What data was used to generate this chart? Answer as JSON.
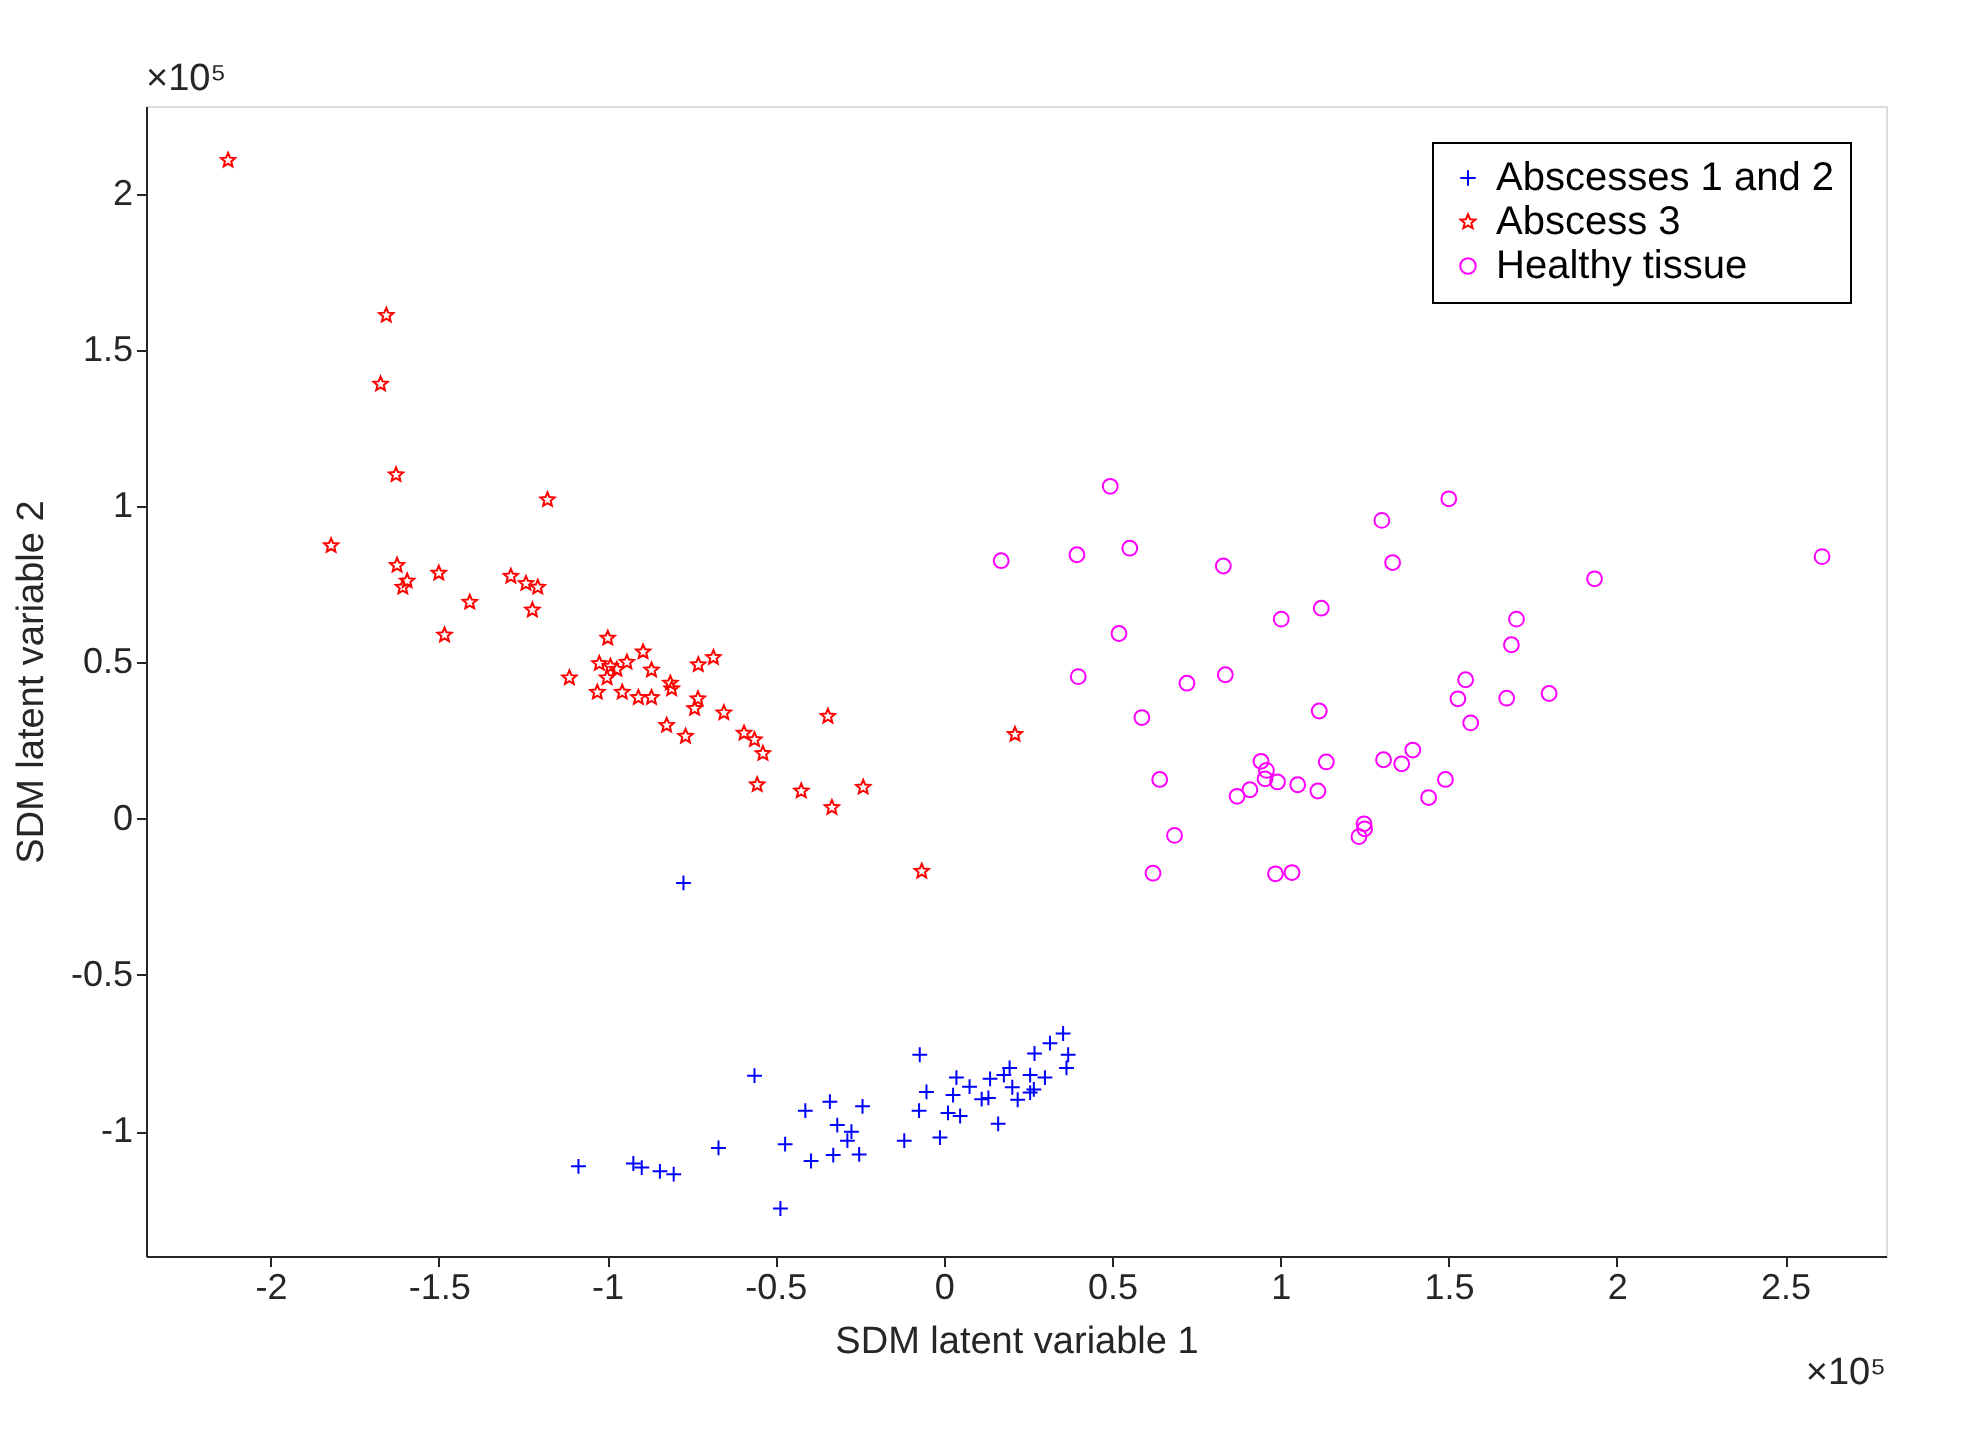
{
  "chart_data": {
    "type": "scatter",
    "xlabel": "SDM latent variable 1",
    "ylabel": "SDM latent variable 2",
    "xlim": [
      -2.37,
      2.8
    ],
    "ylim": [
      -1.4,
      2.28
    ],
    "xticks": [
      -2,
      -1.5,
      -1,
      -0.5,
      0,
      0.5,
      1,
      1.5,
      2,
      2.5
    ],
    "yticks": [
      -1,
      -0.5,
      0,
      0.5,
      1,
      1.5,
      2
    ],
    "grid": false,
    "legend": "top right",
    "annotations": [
      "×10⁵",
      "×10⁵"
    ],
    "series": [
      {
        "name": "Abscesses 1 and 2",
        "color": "#0000ff",
        "marker": "cross",
        "x": [
          -1.085,
          -0.922,
          -0.897,
          -0.843,
          -0.802,
          -0.669,
          -0.562,
          -0.471,
          -0.485,
          -0.411,
          -0.394,
          -0.338,
          -0.316,
          -0.274,
          -0.286,
          -0.328,
          -0.251,
          -0.241,
          -0.117,
          -0.071,
          -0.073,
          -0.051,
          -0.011,
          0.013,
          0.049,
          0.028,
          0.038,
          0.077,
          0.113,
          0.133,
          0.138,
          0.162,
          0.179,
          0.196,
          0.204,
          0.22,
          0.257,
          0.268,
          0.257,
          0.301,
          0.27,
          0.316,
          0.355,
          0.37,
          0.365,
          -0.773
        ],
        "values": [
          -1.113,
          -1.104,
          -1.117,
          -1.129,
          -1.138,
          -1.054,
          -0.823,
          -1.042,
          -1.248,
          -0.935,
          -1.096,
          -0.906,
          -0.981,
          -1.002,
          -1.031,
          -1.077,
          -1.075,
          -0.921,
          -1.031,
          -0.756,
          -0.935,
          -0.875,
          -1.021,
          -0.942,
          -0.952,
          -0.885,
          -0.829,
          -0.858,
          -0.898,
          -0.894,
          -0.833,
          -0.977,
          -0.821,
          -0.798,
          -0.86,
          -0.9,
          -0.821,
          -0.867,
          -0.877,
          -0.829,
          -0.752,
          -0.719,
          -0.688,
          -0.756,
          -0.798,
          -0.206
        ]
      },
      {
        "name": "Abscess 3",
        "color": "#ff0000",
        "marker": "star",
        "x": [
          -2.126,
          -1.656,
          -1.673,
          -1.627,
          -1.177,
          -1.82,
          -1.624,
          -1.594,
          -1.607,
          -1.5,
          -1.286,
          -1.241,
          -1.206,
          -1.222,
          -1.408,
          -1.483,
          -0.998,
          -1.112,
          -1.023,
          -0.99,
          -0.971,
          -0.941,
          -1.0,
          -0.893,
          -0.868,
          -1.029,
          -0.955,
          -0.907,
          -0.868,
          -0.812,
          -0.808,
          -0.729,
          -0.684,
          -0.73,
          -0.74,
          -0.653,
          -0.823,
          -0.767,
          -0.593,
          -0.562,
          -0.537,
          -0.554,
          -0.423,
          -0.332,
          -0.344,
          -0.239,
          -0.065,
          0.212
        ],
        "values": [
          2.106,
          1.61,
          1.39,
          1.1,
          1.02,
          0.873,
          0.81,
          0.76,
          0.74,
          0.785,
          0.775,
          0.752,
          0.74,
          0.667,
          0.692,
          0.587,
          0.577,
          0.45,
          0.496,
          0.487,
          0.477,
          0.5,
          0.45,
          0.533,
          0.475,
          0.404,
          0.404,
          0.387,
          0.387,
          0.433,
          0.415,
          0.492,
          0.515,
          0.383,
          0.352,
          0.338,
          0.298,
          0.263,
          0.273,
          0.252,
          0.208,
          0.108,
          0.088,
          0.035,
          0.327,
          0.1,
          -0.169,
          0.269
        ]
      },
      {
        "name": "Healthy tissue",
        "color": "#ff00ff",
        "marker": "circle",
        "x": [
          0.495,
          1.501,
          1.302,
          0.171,
          0.396,
          0.553,
          0.831,
          1.334,
          2.61,
          1.934,
          1.122,
          1.003,
          1.702,
          1.687,
          0.521,
          0.4,
          0.837,
          0.723,
          1.551,
          1.528,
          1.673,
          1.799,
          1.116,
          0.589,
          1.566,
          1.394,
          1.307,
          1.361,
          1.137,
          0.943,
          0.959,
          0.955,
          0.992,
          1.052,
          1.112,
          0.91,
          0.872,
          0.642,
          1.491,
          1.441,
          0.686,
          1.249,
          1.251,
          1.234,
          0.622,
          0.986,
          1.035
        ],
        "values": [
          1.063,
          1.023,
          0.954,
          0.825,
          0.844,
          0.865,
          0.808,
          0.819,
          0.838,
          0.767,
          0.673,
          0.638,
          0.638,
          0.556,
          0.592,
          0.454,
          0.46,
          0.433,
          0.444,
          0.383,
          0.385,
          0.4,
          0.344,
          0.323,
          0.306,
          0.219,
          0.188,
          0.175,
          0.181,
          0.183,
          0.154,
          0.127,
          0.117,
          0.108,
          0.088,
          0.092,
          0.071,
          0.125,
          0.125,
          0.067,
          -0.054,
          -0.017,
          -0.033,
          -0.058,
          -0.175,
          -0.177,
          -0.173
        ]
      }
    ]
  }
}
